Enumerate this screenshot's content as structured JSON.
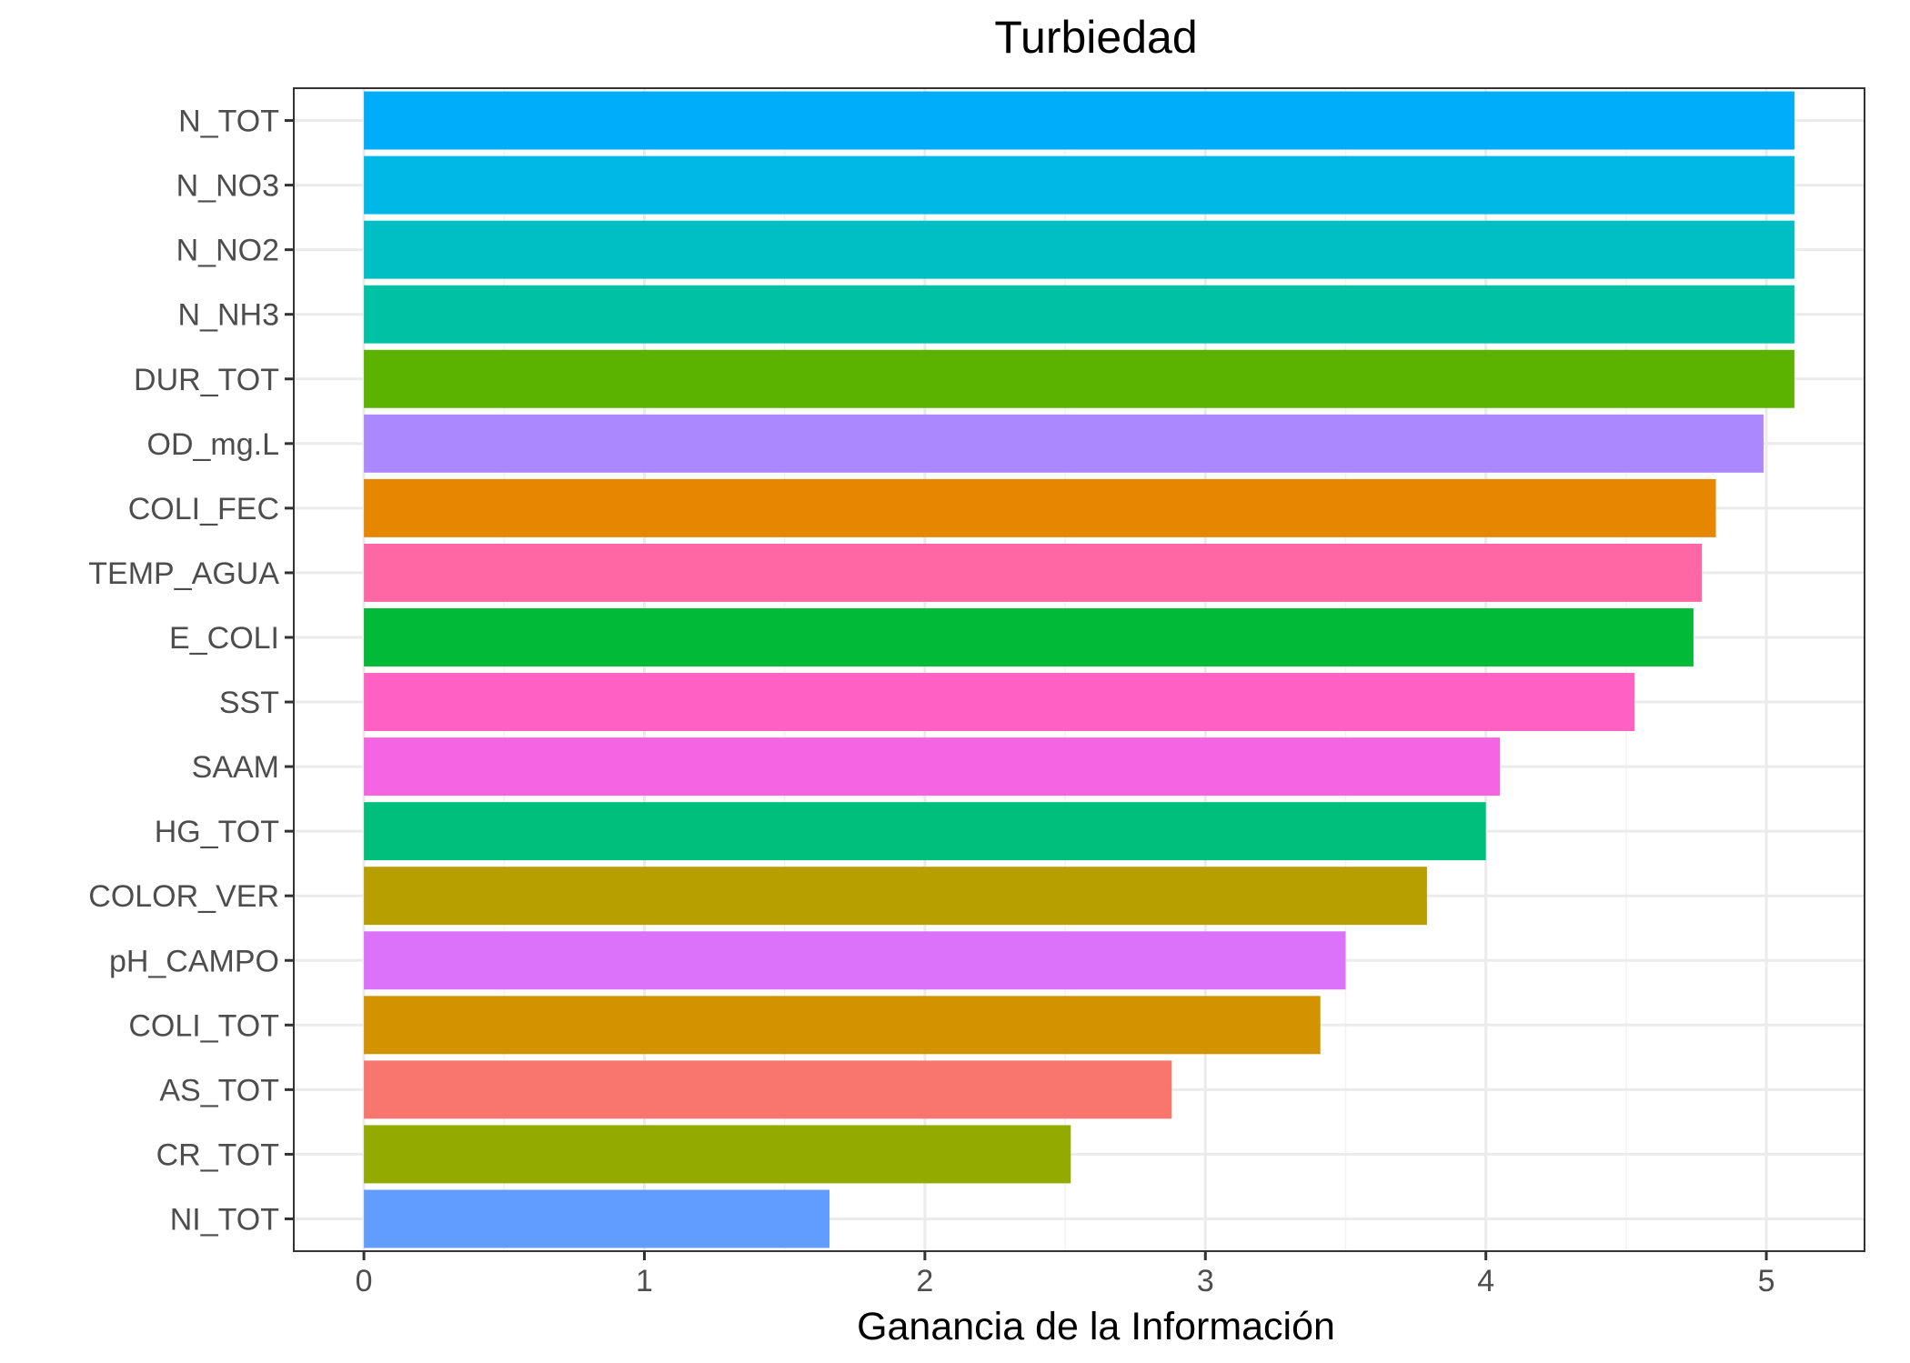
{
  "chart_data": {
    "type": "bar",
    "orientation": "horizontal",
    "title": "Turbiedad",
    "xlabel": "Ganancia de la Información",
    "ylabel": "",
    "xlim": [
      -0.25,
      5.35
    ],
    "xticks": [
      0,
      1,
      2,
      3,
      4,
      5
    ],
    "xtick_labels": [
      "0",
      "1",
      "2",
      "3",
      "4",
      "5"
    ],
    "grid": true,
    "legend": "none",
    "categories": [
      "N_TOT",
      "N_NO3",
      "N_NO2",
      "N_NH3",
      "DUR_TOT",
      "OD_mg.L",
      "COLI_FEC",
      "TEMP_AGUA",
      "E_COLI",
      "SST",
      "SAAM",
      "HG_TOT",
      "COLOR_VER",
      "pH_CAMPO",
      "COLI_TOT",
      "AS_TOT",
      "CR_TOT",
      "NI_TOT"
    ],
    "values": [
      5.1,
      5.1,
      5.1,
      5.1,
      5.1,
      4.99,
      4.82,
      4.77,
      4.74,
      4.53,
      4.05,
      4.0,
      3.79,
      3.5,
      3.41,
      2.88,
      2.52,
      1.66
    ],
    "colors": [
      "#00ADFA",
      "#00B8E5",
      "#00BFC4",
      "#00C1A3",
      "#5BB300",
      "#AC88FF",
      "#E58700",
      "#FF67A4",
      "#00BA38",
      "#FF61C3",
      "#F564E3",
      "#00BF7D",
      "#B79F00",
      "#DC71FA",
      "#D39200",
      "#F8766D",
      "#93AA00",
      "#619CFF"
    ]
  }
}
